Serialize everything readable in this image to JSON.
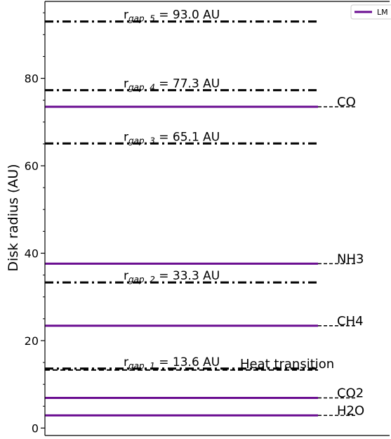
{
  "chart_data": {
    "type": "line",
    "ylabel": "Disk radius (AU)",
    "xlabel": "",
    "ylim": [
      -1.7,
      97.6
    ],
    "yticks": [
      0,
      20,
      40,
      60,
      80
    ],
    "yminor_step": 5,
    "legend": {
      "position": "top-right",
      "entries": [
        {
          "name": "LM",
          "color": "#6a0d91"
        }
      ]
    },
    "colors": {
      "snowline": "#6a0d91",
      "gap": "#000000",
      "transition": "#000000"
    },
    "gaps": [
      {
        "value": 13.6,
        "sub": "gap, 1",
        "suffix": " = 13.6 AU"
      },
      {
        "value": 33.3,
        "sub": "gap, 2",
        "suffix": " = 33.3 AU"
      },
      {
        "value": 65.1,
        "sub": "gap, 3",
        "suffix": " = 65.1 AU"
      },
      {
        "value": 77.3,
        "sub": "gap, 4",
        "suffix": " = 77.3 AU"
      },
      {
        "value": 93.0,
        "sub": "gap, 5",
        "suffix": " = 93.0 AU"
      }
    ],
    "snowlines": [
      {
        "species": "H2O",
        "value": 2.9
      },
      {
        "species": "CO2",
        "value": 6.9
      },
      {
        "species": "CH4",
        "value": 23.4
      },
      {
        "species": "NH3",
        "value": 37.6
      },
      {
        "species": "CO",
        "value": 73.5
      }
    ],
    "transition": {
      "label": "Heat transition",
      "value": 13.6
    }
  }
}
